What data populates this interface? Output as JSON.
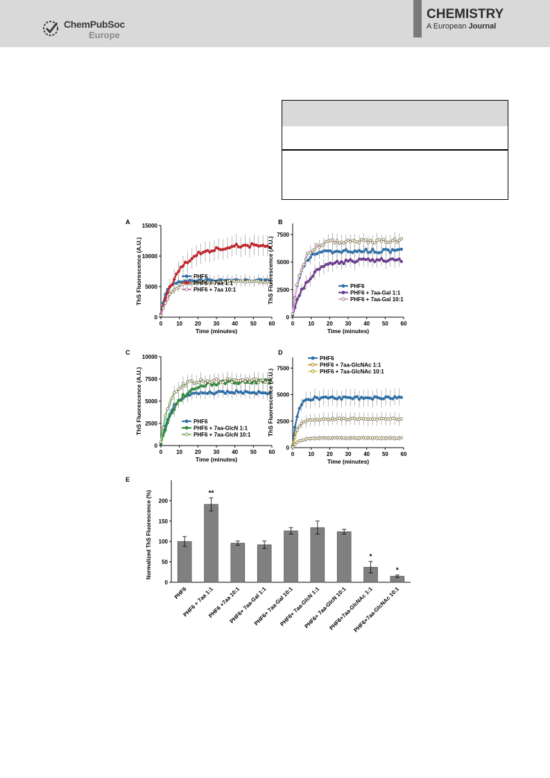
{
  "header": {
    "publisher_line1": "ChemPubSoc",
    "publisher_line2": "Europe",
    "journal_title": "CHEMISTRY",
    "journal_sub_a": "A European",
    "journal_sub_b": "Journal"
  },
  "colors": {
    "phf6": "#2e6fa7",
    "aa11": "#c0282e",
    "aa101": "#d27ac9",
    "gal11": "#6b3d8c",
    "gal101": "#e6a4d8",
    "glcn11": "#2f8a3c",
    "glcn101": "#7ec86d",
    "glcnac11": "#e3a52d",
    "glcnac101": "#e4e63d",
    "bar": "#808080"
  },
  "chart_data": [
    {
      "panel": "A",
      "type": "line",
      "xlabel": "Time (minutes)",
      "ylabel": "ThS Fluorescence (A.U.)",
      "xlim": [
        0,
        60
      ],
      "ylim": [
        0,
        15000
      ],
      "xticks": [
        0,
        10,
        20,
        30,
        40,
        50,
        60
      ],
      "yticks": [
        0,
        5000,
        10000,
        15000
      ],
      "legend": "bottom-right",
      "series": [
        {
          "name": "PHF6",
          "color": "#2e6fa7",
          "marker": "filled",
          "A": 6000,
          "k": 0.35,
          "err": 900,
          "y0": 400
        },
        {
          "name": "PHF6 + 7aa 1:1",
          "color": "#c0282e",
          "marker": "filled",
          "A": 11800,
          "k": 0.1,
          "err": 1700,
          "y0": 500
        },
        {
          "name": "PHF6 + 7aa 10:1",
          "color": "#d27ac9",
          "marker": "open",
          "A": 5800,
          "k": 0.2,
          "err": 700,
          "y0": 300
        }
      ]
    },
    {
      "panel": "B",
      "type": "line",
      "xlabel": "Time (minutes)",
      "ylabel": "ThS Fluorescence (A.U.)",
      "xlim": [
        0,
        60
      ],
      "ylim": [
        0,
        8500
      ],
      "xticks": [
        0,
        10,
        20,
        30,
        40,
        50,
        60
      ],
      "yticks": [
        0,
        2500,
        5000,
        7500
      ],
      "legend": "bottom-right",
      "series": [
        {
          "name": "PHF6",
          "color": "#2e6fa7",
          "marker": "filled",
          "A": 6000,
          "k": 0.25,
          "err": 600,
          "y0": 300
        },
        {
          "name": "PHF6 + 7aa-Gal 1:1",
          "color": "#6b3d8c",
          "marker": "filled",
          "A": 5200,
          "k": 0.12,
          "err": 700,
          "y0": 200
        },
        {
          "name": "PHF6 + 7aa-Gal 10:1",
          "color": "#e6a4d8",
          "marker": "open",
          "A": 6900,
          "k": 0.2,
          "err": 650,
          "y0": 300
        }
      ]
    },
    {
      "panel": "C",
      "type": "line",
      "xlabel": "Time (minutes)",
      "ylabel": "ThS Fluorescence (A.U.)",
      "xlim": [
        0,
        60
      ],
      "ylim": [
        0,
        10000
      ],
      "xticks": [
        0,
        10,
        20,
        30,
        40,
        50,
        60
      ],
      "yticks": [
        0,
        2500,
        5000,
        7500,
        10000
      ],
      "legend": "bottom-right",
      "series": [
        {
          "name": "PHF6",
          "color": "#2e6fa7",
          "marker": "filled",
          "A": 6000,
          "k": 0.18,
          "err": 700,
          "y0": 300
        },
        {
          "name": "PHF6 + 7aa-GlcN 1:1",
          "color": "#2f8a3c",
          "marker": "filled",
          "A": 7200,
          "k": 0.12,
          "err": 900,
          "y0": 200
        },
        {
          "name": "PHF6 + 7aa-GlcN 10:1",
          "color": "#7ec86d",
          "marker": "open",
          "A": 7300,
          "k": 0.22,
          "err": 800,
          "y0": 400
        }
      ]
    },
    {
      "panel": "D",
      "type": "line",
      "xlabel": "Time (minutes)",
      "ylabel": "ThS Fluorescence (A.U.)",
      "xlim": [
        0,
        60
      ],
      "ylim": [
        0,
        8500
      ],
      "xticks": [
        0,
        10,
        20,
        30,
        40,
        50,
        60
      ],
      "yticks": [
        0,
        2500,
        5000,
        7500
      ],
      "legend": "top-left",
      "series": [
        {
          "name": "PHF6",
          "color": "#2e6fa7",
          "marker": "filled",
          "A": 4700,
          "k": 0.4,
          "err": 800,
          "y0": 200
        },
        {
          "name": "PHF6 + 7aa-GlcNAc 1:1",
          "color": "#e3a52d",
          "marker": "open",
          "A": 2700,
          "k": 0.35,
          "err": 600,
          "y0": 100
        },
        {
          "name": "PHF6 + 7aa-GlcNAc 10:1",
          "color": "#e4e63d",
          "marker": "open",
          "A": 900,
          "k": 0.3,
          "err": 250,
          "y0": 50
        }
      ]
    },
    {
      "panel": "E",
      "type": "bar",
      "ylabel": "Normalized ThS Fluorescence  (%)",
      "ylim": [
        0,
        250
      ],
      "yticks": [
        0,
        50,
        100,
        150,
        200
      ],
      "categories": [
        "PHF6",
        "PHF6 + 7aa 1:1",
        "PHF6 +7aa 10:1",
        "PHF6+ 7aa-Gal 1:1",
        "PHF6+ 7aa-Gal 10:1",
        "PHF6+ 7aa-GlcN 1:1",
        "PHF6+ 7aa-GlcN 10:1",
        "PHF6+7aa-GlcNAc 1:1",
        "PHF6+7aa-GlcNAc 10:1"
      ],
      "values": [
        100,
        191,
        96,
        92,
        126,
        134,
        124,
        37,
        15
      ],
      "errors": [
        12,
        16,
        5,
        9,
        8,
        16,
        6,
        14,
        3
      ],
      "significance": [
        "",
        "**",
        "",
        "",
        "",
        "",
        "",
        "*",
        "*"
      ]
    }
  ]
}
